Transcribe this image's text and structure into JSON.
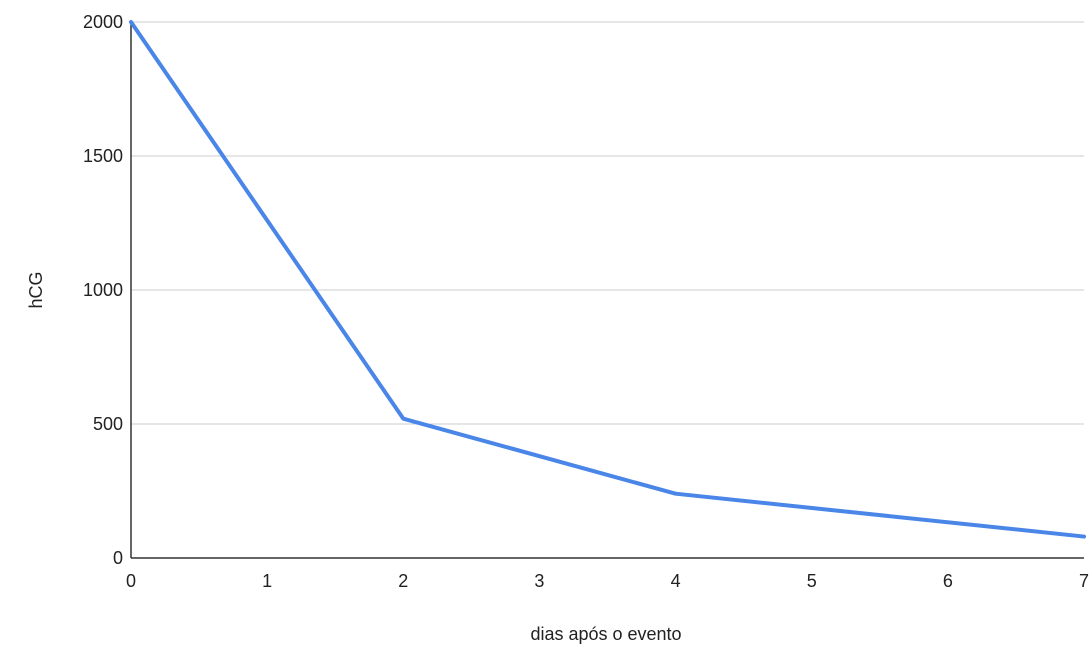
{
  "chart_data": {
    "type": "line",
    "title": "",
    "xlabel": "dias após o evento",
    "ylabel": "hCG",
    "xlim": [
      0,
      7
    ],
    "ylim": [
      0,
      2000
    ],
    "x_ticks": [
      0,
      1,
      2,
      3,
      4,
      5,
      6,
      7
    ],
    "y_ticks": [
      0,
      500,
      1000,
      1500,
      2000
    ],
    "grid": true,
    "legend": "none",
    "series": [
      {
        "color": "#4a86e8",
        "points": [
          {
            "x": 0,
            "y": 2000
          },
          {
            "x": 2,
            "y": 520
          },
          {
            "x": 4,
            "y": 240
          },
          {
            "x": 7,
            "y": 80
          }
        ]
      }
    ]
  }
}
